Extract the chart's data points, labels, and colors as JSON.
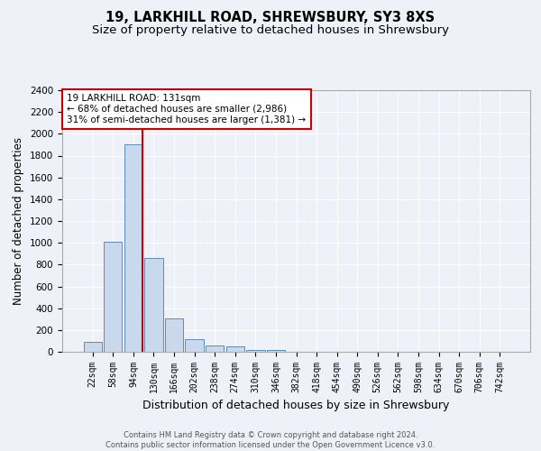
{
  "title": "19, LARKHILL ROAD, SHREWSBURY, SY3 8XS",
  "subtitle": "Size of property relative to detached houses in Shrewsbury",
  "xlabel": "Distribution of detached houses by size in Shrewsbury",
  "ylabel": "Number of detached properties",
  "bin_labels": [
    "22sqm",
    "58sqm",
    "94sqm",
    "130sqm",
    "166sqm",
    "202sqm",
    "238sqm",
    "274sqm",
    "310sqm",
    "346sqm",
    "382sqm",
    "418sqm",
    "454sqm",
    "490sqm",
    "526sqm",
    "562sqm",
    "598sqm",
    "634sqm",
    "670sqm",
    "706sqm",
    "742sqm"
  ],
  "bar_values": [
    90,
    1010,
    1900,
    860,
    310,
    120,
    55,
    48,
    20,
    18,
    0,
    0,
    0,
    0,
    0,
    0,
    0,
    0,
    0,
    0,
    0
  ],
  "bar_color": "#c8d9ed",
  "bar_edge_color": "#5b8db8",
  "property_line_color": "#cc0000",
  "annotation_text": "19 LARKHILL ROAD: 131sqm\n← 68% of detached houses are smaller (2,986)\n31% of semi-detached houses are larger (1,381) →",
  "annotation_box_color": "white",
  "annotation_box_edge_color": "#cc0000",
  "ylim": [
    0,
    2400
  ],
  "yticks": [
    0,
    200,
    400,
    600,
    800,
    1000,
    1200,
    1400,
    1600,
    1800,
    2000,
    2200,
    2400
  ],
  "footer_text": "Contains HM Land Registry data © Crown copyright and database right 2024.\nContains public sector information licensed under the Open Government Licence v3.0.",
  "bg_color": "#eef2f8",
  "grid_color": "white",
  "title_fontsize": 10.5,
  "subtitle_fontsize": 9.5,
  "tick_fontsize": 7,
  "ylabel_fontsize": 8.5,
  "xlabel_fontsize": 9,
  "footer_fontsize": 6,
  "annotation_fontsize": 7.5
}
